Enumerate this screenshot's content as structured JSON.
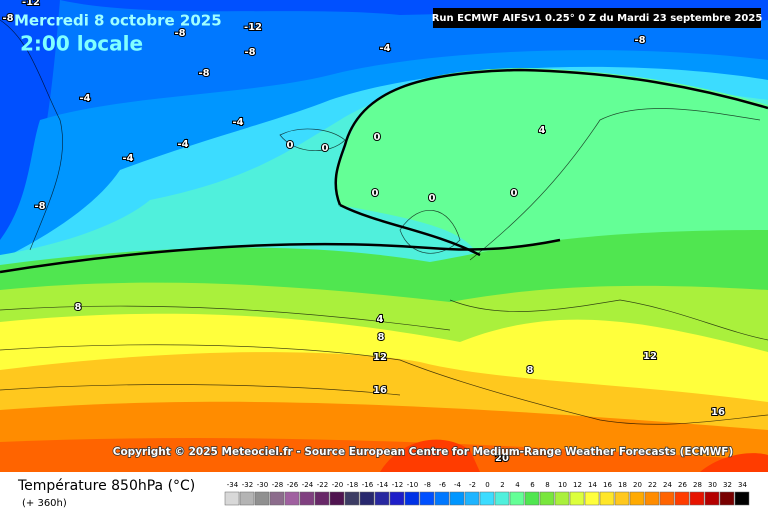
{
  "header": {
    "title": "Mercredi 8 octobre 2025",
    "time": "2:00 locale",
    "run": "Run ECMWF AIFSv1 0.25° 0 Z du Mardi 23 septembre 2025"
  },
  "copyright": "Copyright © 2025 Meteociel.fr - Source European Centre for Medium-Range Weather Forecasts (ECMWF)",
  "legend": {
    "title": "Température 850hPa (°C)",
    "lead": "(+ 360h)",
    "scale": [
      {
        "label": -34,
        "color": "#d8d8d8"
      },
      {
        "label": -32,
        "color": "#b4b4b4"
      },
      {
        "label": -30,
        "color": "#909090"
      },
      {
        "label": -28,
        "color": "#8c6c8c"
      },
      {
        "label": -26,
        "color": "#a060a0"
      },
      {
        "label": -24,
        "color": "#804080"
      },
      {
        "label": -22,
        "color": "#682868"
      },
      {
        "label": -20,
        "color": "#501450"
      },
      {
        "label": -18,
        "color": "#3c3c64"
      },
      {
        "label": -16,
        "color": "#28286e"
      },
      {
        "label": -14,
        "color": "#2828a0"
      },
      {
        "label": -12,
        "color": "#1e1ec8"
      },
      {
        "label": -10,
        "color": "#0032e6"
      },
      {
        "label": -8,
        "color": "#0050ff"
      },
      {
        "label": -6,
        "color": "#0078ff"
      },
      {
        "label": -4,
        "color": "#0096ff"
      },
      {
        "label": -2,
        "color": "#1eb4ff"
      },
      {
        "label": 0,
        "color": "#3cdcff"
      },
      {
        "label": 2,
        "color": "#50f0dc"
      },
      {
        "label": 4,
        "color": "#64ff96"
      },
      {
        "label": 6,
        "color": "#50e650"
      },
      {
        "label": 8,
        "color": "#78e63c"
      },
      {
        "label": 10,
        "color": "#aaf03c"
      },
      {
        "label": 12,
        "color": "#dcff3c"
      },
      {
        "label": 14,
        "color": "#ffff3c"
      },
      {
        "label": 16,
        "color": "#ffe628"
      },
      {
        "label": 18,
        "color": "#ffc81e"
      },
      {
        "label": 20,
        "color": "#ffaa00"
      },
      {
        "label": 22,
        "color": "#ff8c00"
      },
      {
        "label": 24,
        "color": "#ff6400"
      },
      {
        "label": 26,
        "color": "#ff3c00"
      },
      {
        "label": 28,
        "color": "#e61400"
      },
      {
        "label": 30,
        "color": "#b40000"
      },
      {
        "label": 32,
        "color": "#780000"
      },
      {
        "label": 34,
        "color": "#000000"
      }
    ]
  },
  "contour_labels": [
    -12,
    -8,
    -8,
    -12,
    -8,
    -4,
    -8,
    -8,
    -4,
    -4,
    -4,
    -4,
    -8,
    0,
    0,
    0,
    4,
    0,
    0,
    0,
    8,
    4,
    8,
    12,
    16,
    8,
    12,
    16,
    20
  ]
}
